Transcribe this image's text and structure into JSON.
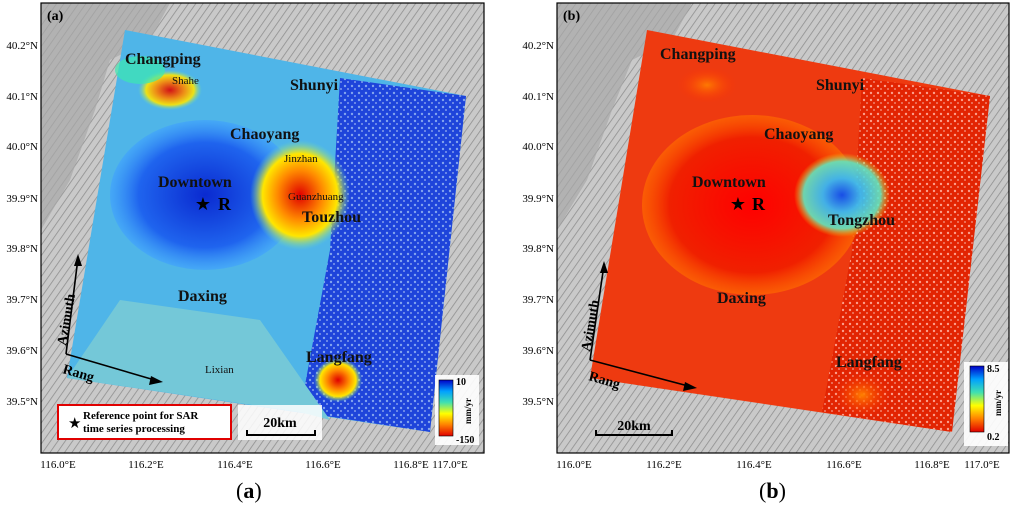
{
  "panels": [
    {
      "id": "a",
      "label": "(a)",
      "caption_open": "(",
      "caption_letter": "a",
      "caption_close": ")",
      "places": {
        "changping": "Changping",
        "shahe": "Shahe",
        "shunyi": "Shunyi",
        "chaoyang": "Chaoyang",
        "jinzhan": "Jinzhan",
        "downtown": "Downtown",
        "guanzhuang": "Guanzhuang",
        "tongzhou": "Touzhou",
        "daxing": "Daxing",
        "lixian": "Lixian",
        "langfang": "Langfang"
      },
      "reference_label": "R",
      "colorbar": {
        "max": "10",
        "min": "-150",
        "unit": "mm/yr",
        "colors": [
          "#0000c8",
          "#00a0ff",
          "#40e0b0",
          "#ffff00",
          "#ff8000",
          "#e00000"
        ]
      },
      "legend_text_1": "Reference point for SAR",
      "legend_text_2": "time series processing"
    },
    {
      "id": "b",
      "label": "(b)",
      "caption_open": "(",
      "caption_letter": "b",
      "caption_close": ")",
      "places": {
        "changping": "Changping",
        "shunyi": "Shunyi",
        "chaoyang": "Chaoyang",
        "downtown": "Downtown",
        "tongzhou": "Tongzhou",
        "daxing": "Daxing",
        "langfang": "Langfang"
      },
      "reference_label": "R",
      "colorbar": {
        "max": "8.5",
        "min": "0.2",
        "unit": "mm/yr",
        "colors": [
          "#0000c8",
          "#00a0ff",
          "#40e0b0",
          "#ffff00",
          "#ff8000",
          "#e00000"
        ]
      }
    }
  ],
  "axes": {
    "y_ticks": [
      "40.2°N",
      "40.1°N",
      "40.0°N",
      "39.9°N",
      "39.8°N",
      "39.7°N",
      "39.6°N",
      "39.5°N"
    ],
    "x_ticks": [
      "116.0°E",
      "116.2°E",
      "116.4°E",
      "116.6°E",
      "116.8°E",
      "117.0°E"
    ]
  },
  "annotations": {
    "azimuth": "Azimuth",
    "range": "Rang",
    "scale": "20km"
  }
}
